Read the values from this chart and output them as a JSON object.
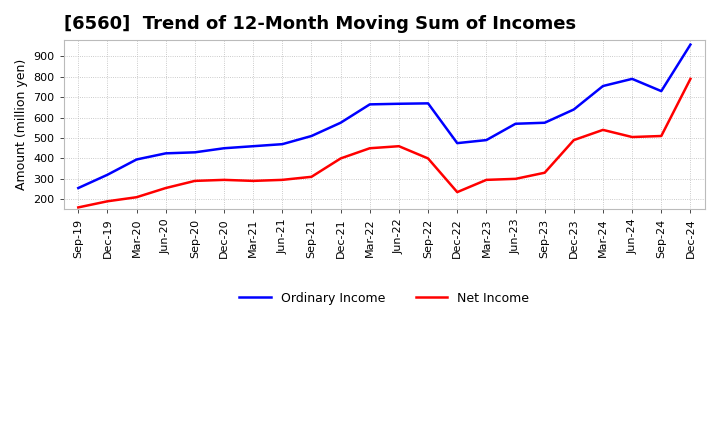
{
  "title": "[6560]  Trend of 12-Month Moving Sum of Incomes",
  "ylabel": "Amount (million yen)",
  "ylim": [
    150,
    980
  ],
  "yticks": [
    200,
    300,
    400,
    500,
    600,
    700,
    800,
    900
  ],
  "x_labels": [
    "Sep-19",
    "Dec-19",
    "Mar-20",
    "Jun-20",
    "Sep-20",
    "Dec-20",
    "Mar-21",
    "Jun-21",
    "Sep-21",
    "Dec-21",
    "Mar-22",
    "Jun-22",
    "Sep-22",
    "Dec-22",
    "Mar-23",
    "Jun-23",
    "Sep-23",
    "Dec-23",
    "Mar-24",
    "Jun-24",
    "Sep-24",
    "Dec-24"
  ],
  "ordinary_income": [
    255,
    320,
    395,
    425,
    430,
    450,
    460,
    470,
    510,
    575,
    665,
    668,
    670,
    475,
    490,
    570,
    575,
    640,
    755,
    790,
    730,
    958
  ],
  "net_income": [
    160,
    190,
    210,
    255,
    290,
    295,
    290,
    295,
    310,
    400,
    450,
    460,
    400,
    235,
    295,
    300,
    330,
    490,
    540,
    505,
    510,
    790
  ],
  "ordinary_color": "#0000ff",
  "net_color": "#ff0000",
  "grid_color": "#bbbbbb",
  "background_color": "#ffffff",
  "legend_ordinary": "Ordinary Income",
  "legend_net": "Net Income",
  "title_fontsize": 13,
  "label_fontsize": 8,
  "ylabel_fontsize": 9
}
